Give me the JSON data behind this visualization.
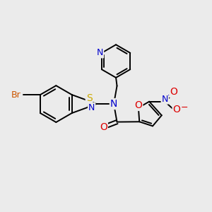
{
  "background_color": "#ebebeb",
  "atom_colors": {
    "C": "#000000",
    "N": "#0000cc",
    "O": "#dd0000",
    "S": "#ccaa00",
    "Br": "#cc5500",
    "H": "#000000"
  },
  "bond_color": "#000000",
  "bond_width": 1.4,
  "dbo": 0.08,
  "font_size": 9,
  "fig_size": [
    3.0,
    3.0
  ],
  "dpi": 100
}
